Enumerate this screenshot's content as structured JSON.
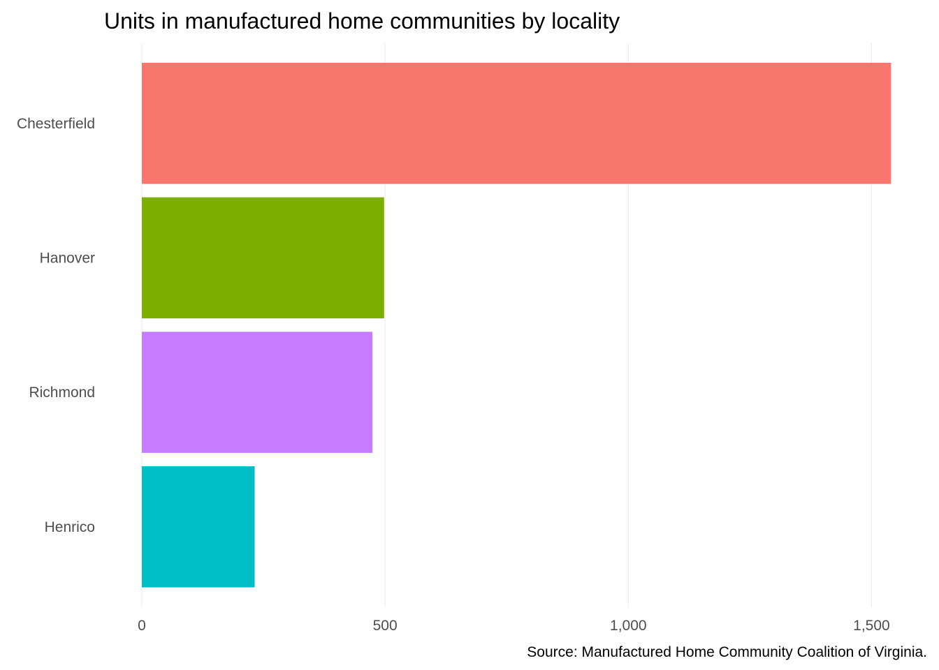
{
  "chart_data": {
    "type": "bar",
    "orientation": "horizontal",
    "title": "Units in manufactured home communities by locality",
    "caption": "Source: Manufactured Home Community Coalition of Virginia.",
    "xlabel": "",
    "ylabel": "",
    "categories": [
      "Chesterfield",
      "Hanover",
      "Richmond",
      "Henrico"
    ],
    "values": [
      1540,
      498,
      474,
      232
    ],
    "colors": [
      "#F8766D",
      "#7CAE00",
      "#C77CFF",
      "#00BFC4"
    ],
    "xlim": [
      0,
      1560
    ],
    "x_ticks": [
      0,
      500,
      1000,
      1500
    ],
    "x_tick_labels": [
      "0",
      "500",
      "1,000",
      "1,500"
    ],
    "grid": true,
    "legend": "none"
  }
}
